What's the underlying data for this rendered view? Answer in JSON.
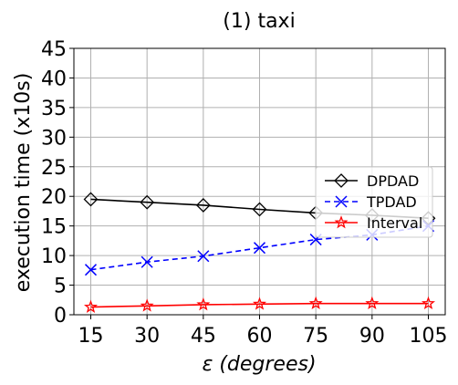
{
  "chart_data": {
    "type": "line",
    "title": "(1) taxi",
    "xlabel": "ε (degrees)",
    "xlabel_symbol": "ε",
    "xlabel_unit": "(degrees)",
    "ylabel": "execution time (x10s)",
    "x": [
      15,
      30,
      45,
      60,
      75,
      90,
      105
    ],
    "x_ticks": [
      "15",
      "30",
      "45",
      "60",
      "75",
      "90",
      "105"
    ],
    "ylim": [
      0,
      45
    ],
    "y_ticks": [
      "0",
      "5",
      "10",
      "15",
      "20",
      "25",
      "30",
      "35",
      "40",
      "45"
    ],
    "grid": true,
    "legend_position": "center-right",
    "series": [
      {
        "name": "DPDAD",
        "values": [
          19.5,
          19.0,
          18.5,
          17.8,
          17.2,
          16.8,
          16.3
        ],
        "color": "#000000",
        "line": "solid",
        "marker": "diamond"
      },
      {
        "name": "TPDAD",
        "values": [
          7.6,
          8.9,
          9.9,
          11.3,
          12.7,
          13.5,
          15.0
        ],
        "color": "#0000ff",
        "line": "dashed",
        "marker": "x"
      },
      {
        "name": "Interval",
        "values": [
          1.3,
          1.5,
          1.7,
          1.8,
          1.9,
          1.9,
          1.9
        ],
        "color": "#ff0000",
        "line": "solid",
        "marker": "star"
      }
    ]
  }
}
